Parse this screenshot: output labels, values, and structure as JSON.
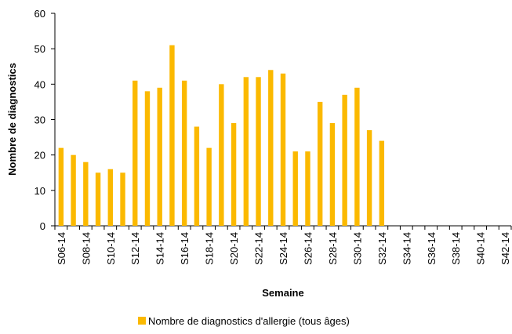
{
  "chart_data": {
    "type": "bar",
    "x_label": "Semaine",
    "y_label": "Nombre de diagnostics",
    "categories": [
      "S06-14",
      null,
      "S08-14",
      null,
      "S10-14",
      null,
      "S12-14",
      null,
      "S14-14",
      null,
      "S16-14",
      null,
      "S18-14",
      null,
      "S20-14",
      null,
      "S22-14",
      null,
      "S24-14",
      null,
      "S26-14",
      null,
      "S28-14",
      null,
      "S30-14",
      null,
      "S32-14",
      null,
      "S34-14",
      null,
      "S36-14",
      null,
      "S38-14",
      null,
      "S40-14",
      null,
      "S42-14"
    ],
    "series": [
      {
        "name": "Nombre de diagnostics d'allergie (tous âges)",
        "color": "#fbb900",
        "values": [
          22,
          20,
          18,
          15,
          16,
          15,
          41,
          38,
          39,
          51,
          41,
          28,
          22,
          40,
          29,
          42,
          42,
          44,
          43,
          21,
          21,
          35,
          29,
          37,
          39,
          27,
          24,
          null,
          null,
          null,
          null,
          null,
          null,
          null,
          null,
          null,
          null
        ]
      }
    ],
    "ylim": [
      0,
      60
    ],
    "yticks": [
      0,
      10,
      20,
      30,
      40,
      50,
      60
    ],
    "grid": false,
    "legend": "bottom"
  }
}
